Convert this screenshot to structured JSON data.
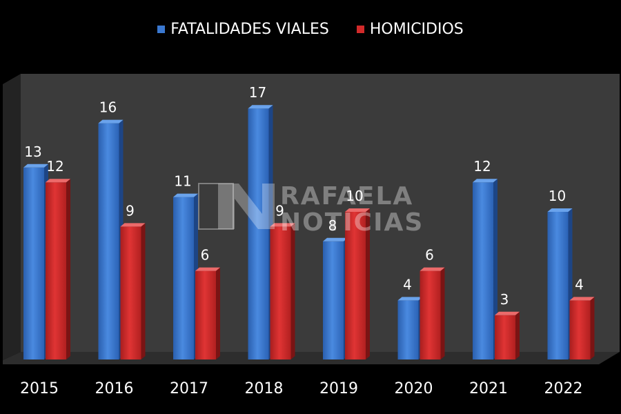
{
  "chart_data": {
    "type": "bar",
    "title": "",
    "xlabel": "",
    "ylabel": "",
    "ylim": [
      0,
      19
    ],
    "grid": false,
    "legend_position": "top-center",
    "categories": [
      "2015",
      "2016",
      "2017",
      "2018",
      "2019",
      "2020",
      "2021",
      "2022"
    ],
    "series": [
      {
        "name": "FATALIDADES VIALES",
        "color": "#3a78d0",
        "values": [
          13,
          16,
          11,
          17,
          8,
          4,
          12,
          10
        ]
      },
      {
        "name": "HOMICIDIOS",
        "color": "#d22a2a",
        "values": [
          12,
          9,
          6,
          9,
          10,
          6,
          3,
          4
        ]
      }
    ]
  },
  "watermark": {
    "line1": "RAFAELA",
    "line2": "NOTICIAS"
  }
}
